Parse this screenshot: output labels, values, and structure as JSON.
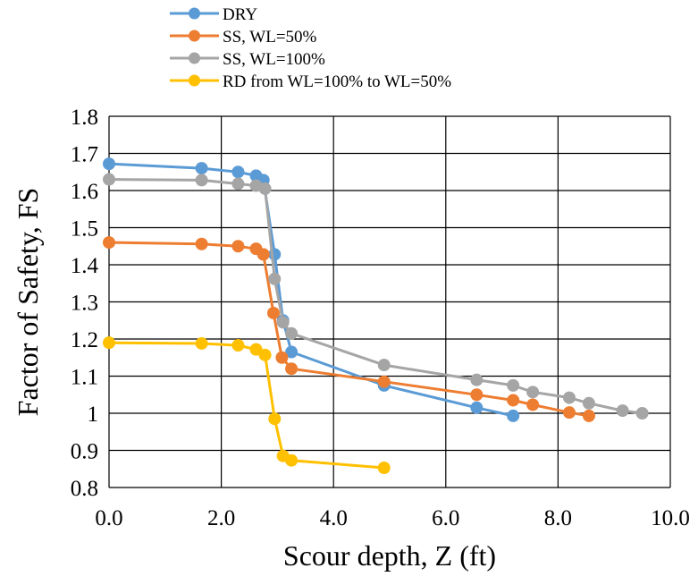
{
  "chart_data": {
    "type": "line",
    "title": "",
    "xlabel": "Scour depth, Z (ft)",
    "ylabel": "Factor of Safety, FS",
    "xlim": [
      0.0,
      10.0
    ],
    "ylim": [
      0.8,
      1.8
    ],
    "xticks": [
      0,
      2,
      4,
      6,
      8,
      10
    ],
    "xtick_labels": [
      "0.0",
      "2.0",
      "4.0",
      "6.0",
      "8.0",
      "10.0"
    ],
    "yticks": [
      0.8,
      0.9,
      1.0,
      1.1,
      1.2,
      1.3,
      1.4,
      1.5,
      1.6,
      1.7,
      1.8
    ],
    "ytick_labels": [
      "0.8",
      "0.9",
      "1",
      "1.1",
      "1.2",
      "1.3",
      "1.4",
      "1.5",
      "1.6",
      "1.7",
      "1.8"
    ],
    "grid": true,
    "legend": "top",
    "series": [
      {
        "name": "DRY",
        "color": "#5B9BD5",
        "x": [
          0.0,
          1.65,
          2.3,
          2.62,
          2.75,
          2.95,
          3.1,
          3.25,
          4.9,
          6.55,
          7.2
        ],
        "y": [
          1.672,
          1.66,
          1.65,
          1.64,
          1.628,
          1.428,
          1.25,
          1.165,
          1.075,
          1.015,
          0.993
        ]
      },
      {
        "name": "SS, WL=50%",
        "color": "#ED7D31",
        "x": [
          0.0,
          1.65,
          2.3,
          2.62,
          2.75,
          2.93,
          3.08,
          3.25,
          4.9,
          6.55,
          7.2,
          7.55,
          8.2,
          8.55
        ],
        "y": [
          1.46,
          1.456,
          1.45,
          1.443,
          1.428,
          1.27,
          1.15,
          1.12,
          1.085,
          1.05,
          1.035,
          1.023,
          1.002,
          0.993
        ]
      },
      {
        "name": "SS, WL=100%",
        "color": "#A5A5A5",
        "x": [
          0.0,
          1.65,
          2.3,
          2.62,
          2.78,
          2.95,
          3.1,
          3.25,
          4.9,
          6.55,
          7.2,
          7.55,
          8.2,
          8.55,
          9.15,
          9.5
        ],
        "y": [
          1.63,
          1.628,
          1.618,
          1.613,
          1.605,
          1.362,
          1.245,
          1.215,
          1.13,
          1.09,
          1.075,
          1.057,
          1.042,
          1.027,
          1.007,
          1.0
        ]
      },
      {
        "name": "RD from WL=100% to WL=50%",
        "color": "#FFC000",
        "x": [
          0.0,
          1.65,
          2.3,
          2.62,
          2.78,
          2.95,
          3.1,
          3.25,
          4.9
        ],
        "y": [
          1.19,
          1.188,
          1.183,
          1.172,
          1.157,
          0.985,
          0.885,
          0.873,
          0.853
        ]
      }
    ]
  }
}
